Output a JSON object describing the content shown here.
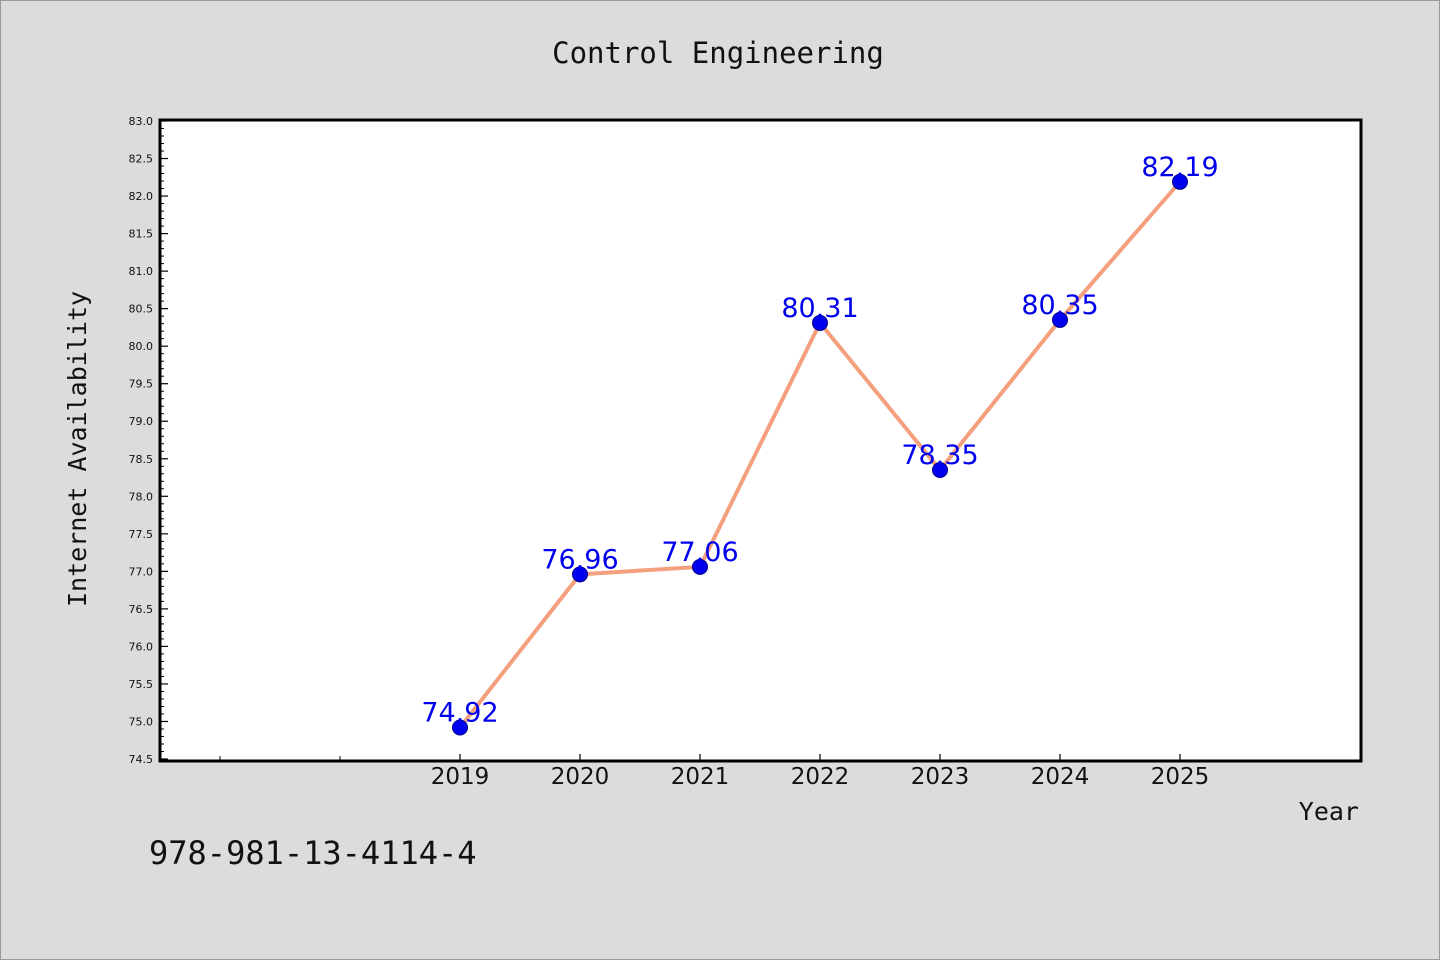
{
  "chart_data": {
    "type": "line",
    "title": "Control Engineering",
    "xlabel": "Year",
    "ylabel": "Internet Availability",
    "categories": [
      "2019",
      "2020",
      "2021",
      "2022",
      "2023",
      "2024",
      "2025"
    ],
    "series": [
      {
        "values": [
          74.92,
          76.96,
          77.06,
          80.31,
          78.35,
          80.35,
          82.19
        ],
        "labels": [
          "74.92",
          "76.96",
          "77.06",
          "80.31",
          "78.35",
          "80.35",
          "82.19"
        ]
      }
    ],
    "ylim": [
      74.5,
      83.0
    ],
    "yticks": [
      "74.5",
      "75.0",
      "75.5",
      "76.0",
      "76.5",
      "77.0",
      "77.5",
      "78.0",
      "78.5",
      "79.0",
      "79.5",
      "80.0",
      "80.5",
      "81.0",
      "81.5",
      "82.0",
      "82.5",
      "83.0"
    ],
    "x_axis_slots": 10,
    "grid": false,
    "colors": {
      "line": "#f4a07f",
      "marker": "#0000ee",
      "data_label": "#0000ee",
      "plot_background": "#ffffff",
      "page_background": "#dcdcdc"
    }
  },
  "footer": {
    "isbn": "978-981-13-4114-4"
  }
}
